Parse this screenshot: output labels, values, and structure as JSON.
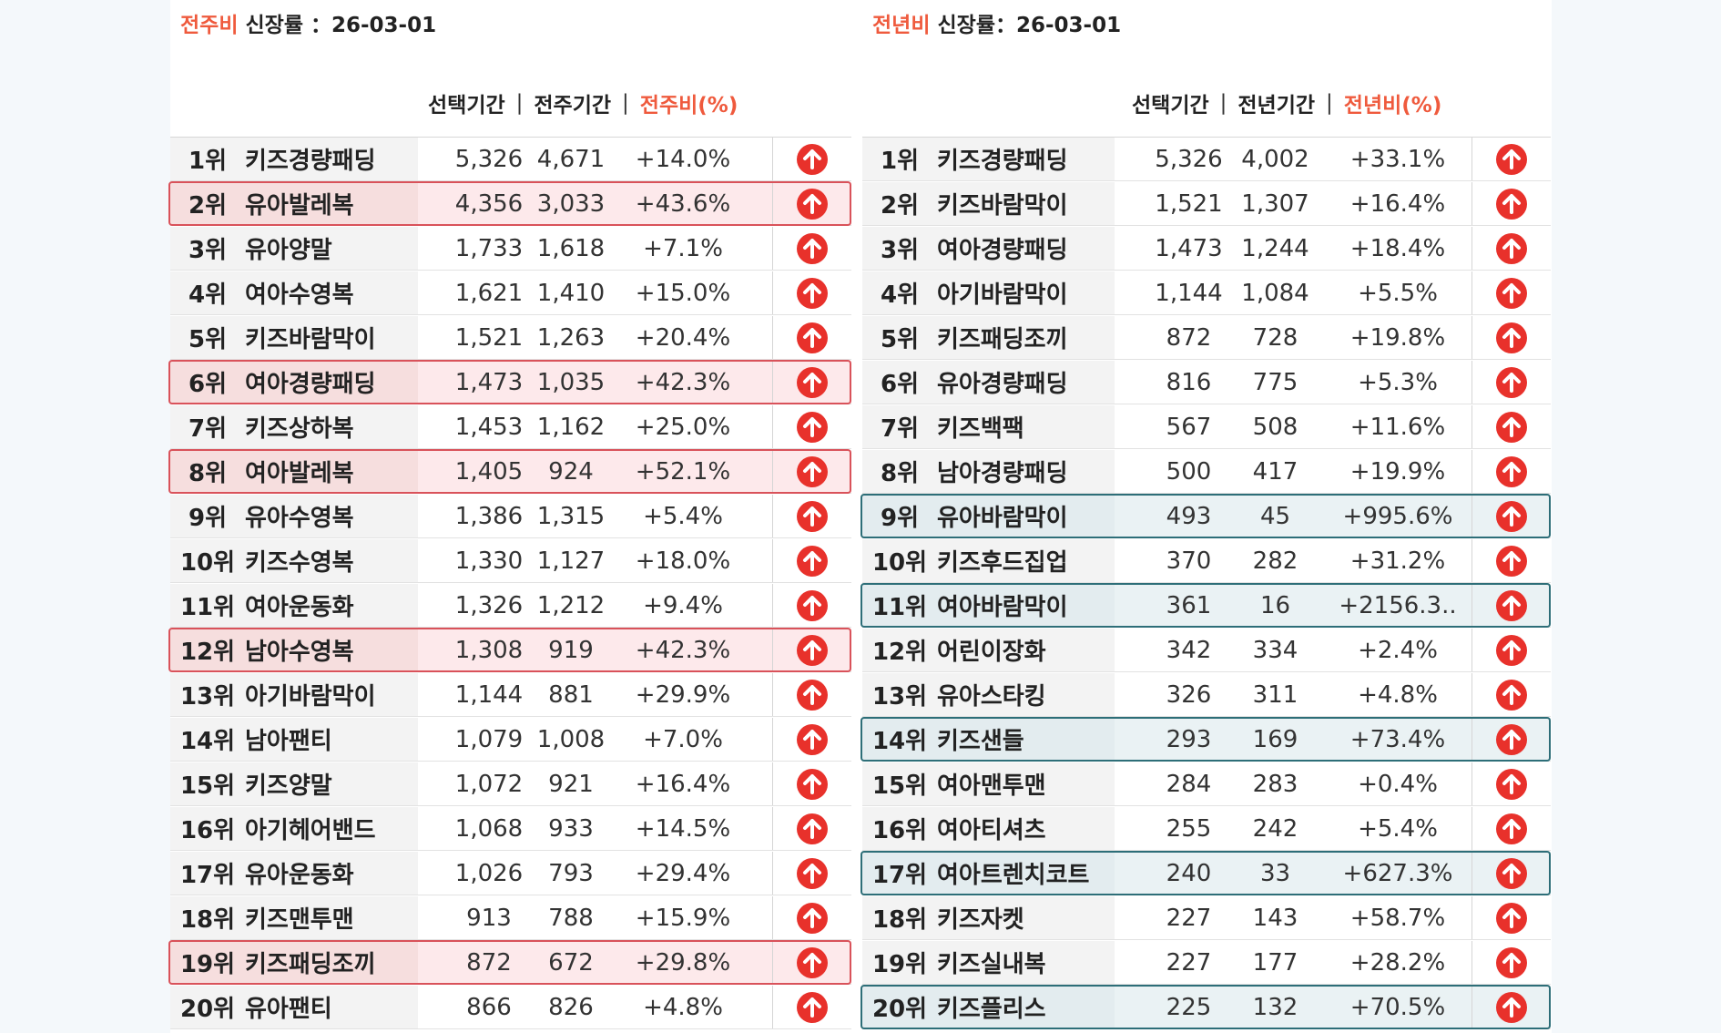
{
  "colors": {
    "accent": "#ef5a3d",
    "up_arrow": "#e8312b",
    "highlight_red": "#d9525a",
    "highlight_teal": "#2d6e78"
  },
  "left_panel": {
    "title_accent": "전주비",
    "title_rest": "신장률 ：26-03-01",
    "headers": {
      "selected": "선택기간",
      "compare": "전주기간",
      "ratio": "전주비(%)",
      "separator": "|"
    },
    "rows": [
      {
        "rank": "1위",
        "name": "키즈경량패딩",
        "selected": "5,326",
        "compare": "4,671",
        "ratio": "+14.0%",
        "highlight": ""
      },
      {
        "rank": "2위",
        "name": "유아발레복",
        "selected": "4,356",
        "compare": "3,033",
        "ratio": "+43.6%",
        "highlight": "red"
      },
      {
        "rank": "3위",
        "name": "유아양말",
        "selected": "1,733",
        "compare": "1,618",
        "ratio": "+7.1%",
        "highlight": ""
      },
      {
        "rank": "4위",
        "name": "여아수영복",
        "selected": "1,621",
        "compare": "1,410",
        "ratio": "+15.0%",
        "highlight": ""
      },
      {
        "rank": "5위",
        "name": "키즈바람막이",
        "selected": "1,521",
        "compare": "1,263",
        "ratio": "+20.4%",
        "highlight": ""
      },
      {
        "rank": "6위",
        "name": "여아경량패딩",
        "selected": "1,473",
        "compare": "1,035",
        "ratio": "+42.3%",
        "highlight": "red"
      },
      {
        "rank": "7위",
        "name": "키즈상하복",
        "selected": "1,453",
        "compare": "1,162",
        "ratio": "+25.0%",
        "highlight": ""
      },
      {
        "rank": "8위",
        "name": "여아발레복",
        "selected": "1,405",
        "compare": "924",
        "ratio": "+52.1%",
        "highlight": "red"
      },
      {
        "rank": "9위",
        "name": "유아수영복",
        "selected": "1,386",
        "compare": "1,315",
        "ratio": "+5.4%",
        "highlight": ""
      },
      {
        "rank": "10위",
        "name": "키즈수영복",
        "selected": "1,330",
        "compare": "1,127",
        "ratio": "+18.0%",
        "highlight": ""
      },
      {
        "rank": "11위",
        "name": "여아운동화",
        "selected": "1,326",
        "compare": "1,212",
        "ratio": "+9.4%",
        "highlight": ""
      },
      {
        "rank": "12위",
        "name": "남아수영복",
        "selected": "1,308",
        "compare": "919",
        "ratio": "+42.3%",
        "highlight": "red"
      },
      {
        "rank": "13위",
        "name": "아기바람막이",
        "selected": "1,144",
        "compare": "881",
        "ratio": "+29.9%",
        "highlight": ""
      },
      {
        "rank": "14위",
        "name": "남아팬티",
        "selected": "1,079",
        "compare": "1,008",
        "ratio": "+7.0%",
        "highlight": ""
      },
      {
        "rank": "15위",
        "name": "키즈양말",
        "selected": "1,072",
        "compare": "921",
        "ratio": "+16.4%",
        "highlight": ""
      },
      {
        "rank": "16위",
        "name": "아기헤어밴드",
        "selected": "1,068",
        "compare": "933",
        "ratio": "+14.5%",
        "highlight": ""
      },
      {
        "rank": "17위",
        "name": "유아운동화",
        "selected": "1,026",
        "compare": "793",
        "ratio": "+29.4%",
        "highlight": ""
      },
      {
        "rank": "18위",
        "name": "키즈맨투맨",
        "selected": "913",
        "compare": "788",
        "ratio": "+15.9%",
        "highlight": ""
      },
      {
        "rank": "19위",
        "name": "키즈패딩조끼",
        "selected": "872",
        "compare": "672",
        "ratio": "+29.8%",
        "highlight": "red"
      },
      {
        "rank": "20위",
        "name": "유아팬티",
        "selected": "866",
        "compare": "826",
        "ratio": "+4.8%",
        "highlight": ""
      }
    ]
  },
  "right_panel": {
    "title_accent": "전년비",
    "title_rest": "신장률：26-03-01",
    "headers": {
      "selected": "선택기간",
      "compare": "전년기간",
      "ratio": "전년비(%)",
      "separator": "|"
    },
    "rows": [
      {
        "rank": "1위",
        "name": "키즈경량패딩",
        "selected": "5,326",
        "compare": "4,002",
        "ratio": "+33.1%",
        "highlight": ""
      },
      {
        "rank": "2위",
        "name": "키즈바람막이",
        "selected": "1,521",
        "compare": "1,307",
        "ratio": "+16.4%",
        "highlight": ""
      },
      {
        "rank": "3위",
        "name": "여아경량패딩",
        "selected": "1,473",
        "compare": "1,244",
        "ratio": "+18.4%",
        "highlight": ""
      },
      {
        "rank": "4위",
        "name": "아기바람막이",
        "selected": "1,144",
        "compare": "1,084",
        "ratio": "+5.5%",
        "highlight": ""
      },
      {
        "rank": "5위",
        "name": "키즈패딩조끼",
        "selected": "872",
        "compare": "728",
        "ratio": "+19.8%",
        "highlight": ""
      },
      {
        "rank": "6위",
        "name": "유아경량패딩",
        "selected": "816",
        "compare": "775",
        "ratio": "+5.3%",
        "highlight": ""
      },
      {
        "rank": "7위",
        "name": "키즈백팩",
        "selected": "567",
        "compare": "508",
        "ratio": "+11.6%",
        "highlight": ""
      },
      {
        "rank": "8위",
        "name": "남아경량패딩",
        "selected": "500",
        "compare": "417",
        "ratio": "+19.9%",
        "highlight": ""
      },
      {
        "rank": "9위",
        "name": "유아바람막이",
        "selected": "493",
        "compare": "45",
        "ratio": "+995.6%",
        "highlight": "teal"
      },
      {
        "rank": "10위",
        "name": "키즈후드집업",
        "selected": "370",
        "compare": "282",
        "ratio": "+31.2%",
        "highlight": ""
      },
      {
        "rank": "11위",
        "name": "여아바람막이",
        "selected": "361",
        "compare": "16",
        "ratio": "+2156.3..",
        "highlight": "teal"
      },
      {
        "rank": "12위",
        "name": "어린이장화",
        "selected": "342",
        "compare": "334",
        "ratio": "+2.4%",
        "highlight": ""
      },
      {
        "rank": "13위",
        "name": "유아스타킹",
        "selected": "326",
        "compare": "311",
        "ratio": "+4.8%",
        "highlight": ""
      },
      {
        "rank": "14위",
        "name": "키즈샌들",
        "selected": "293",
        "compare": "169",
        "ratio": "+73.4%",
        "highlight": "teal"
      },
      {
        "rank": "15위",
        "name": "여아맨투맨",
        "selected": "284",
        "compare": "283",
        "ratio": "+0.4%",
        "highlight": ""
      },
      {
        "rank": "16위",
        "name": "여아티셔츠",
        "selected": "255",
        "compare": "242",
        "ratio": "+5.4%",
        "highlight": ""
      },
      {
        "rank": "17위",
        "name": "여아트렌치코트",
        "selected": "240",
        "compare": "33",
        "ratio": "+627.3%",
        "highlight": "teal"
      },
      {
        "rank": "18위",
        "name": "키즈자켓",
        "selected": "227",
        "compare": "143",
        "ratio": "+58.7%",
        "highlight": ""
      },
      {
        "rank": "19위",
        "name": "키즈실내복",
        "selected": "227",
        "compare": "177",
        "ratio": "+28.2%",
        "highlight": ""
      },
      {
        "rank": "20위",
        "name": "키즈플리스",
        "selected": "225",
        "compare": "132",
        "ratio": "+70.5%",
        "highlight": "teal"
      }
    ]
  }
}
